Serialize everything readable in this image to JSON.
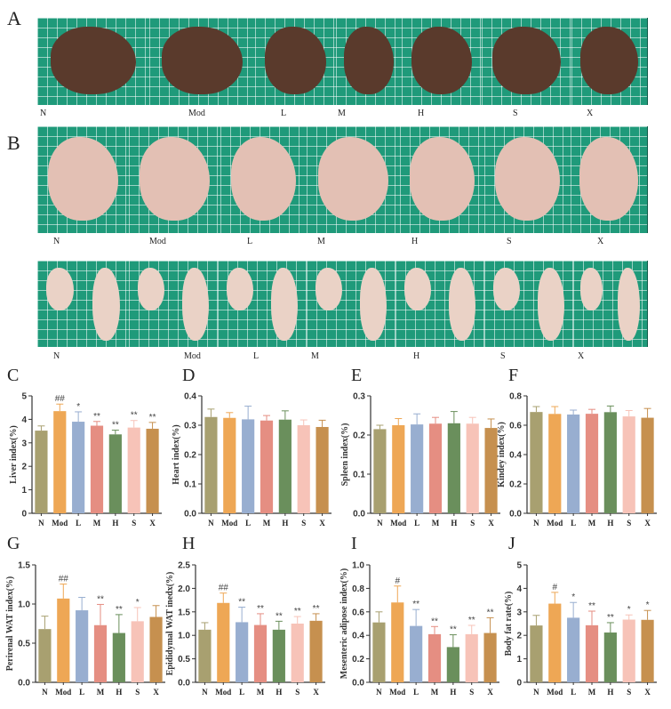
{
  "groups": [
    "N",
    "Mod",
    "L",
    "M",
    "H",
    "S",
    "X"
  ],
  "colors": {
    "N": "#a8a070",
    "Mod": "#eea755",
    "L": "#98aed0",
    "M": "#e58e82",
    "H": "#6a8f5c",
    "S": "#f7c3b8",
    "X": "#c6904f"
  },
  "photo_panels": [
    {
      "letter": "A",
      "subject": "liver",
      "tissue_color": "#5a3a2c"
    },
    {
      "letter": "B",
      "subject": "mesenteric adipose",
      "tissue_color": "#e3c0b4"
    },
    {
      "letter": "",
      "subject": "perirenal / epididymal adipose",
      "tissue_color": "#ead2c6"
    }
  ],
  "chart_data": [
    {
      "letter": "C",
      "type": "bar",
      "ylabel": "Liver index(%)",
      "categories": [
        "N",
        "Mod",
        "L",
        "M",
        "H",
        "S",
        "X"
      ],
      "values": [
        3.52,
        4.35,
        3.9,
        3.73,
        3.36,
        3.65,
        3.6
      ],
      "errors": [
        0.2,
        0.3,
        0.42,
        0.18,
        0.18,
        0.3,
        0.27
      ],
      "annotations": [
        "",
        "##",
        "*",
        "**",
        "**",
        "**",
        "**"
      ],
      "ylim": [
        0,
        5
      ],
      "yticks": [
        "0",
        "1",
        "2",
        "3",
        "4",
        "5"
      ]
    },
    {
      "letter": "D",
      "type": "bar",
      "ylabel": "Heart index(%)",
      "categories": [
        "N",
        "Mod",
        "L",
        "M",
        "H",
        "S",
        "X"
      ],
      "values": [
        0.328,
        0.325,
        0.32,
        0.316,
        0.319,
        0.3,
        0.294
      ],
      "errors": [
        0.027,
        0.018,
        0.045,
        0.017,
        0.03,
        0.018,
        0.023
      ],
      "annotations": [
        "",
        "",
        "",
        "",
        "",
        "",
        ""
      ],
      "ylim": [
        0,
        0.4
      ],
      "yticks": [
        "0.0",
        "0.1",
        "0.2",
        "0.3",
        "0.4"
      ]
    },
    {
      "letter": "E",
      "type": "bar",
      "ylabel": "Spleen index(%)",
      "categories": [
        "N",
        "Mod",
        "L",
        "M",
        "H",
        "S",
        "X"
      ],
      "values": [
        0.215,
        0.225,
        0.227,
        0.229,
        0.23,
        0.229,
        0.218
      ],
      "errors": [
        0.01,
        0.017,
        0.027,
        0.016,
        0.03,
        0.016,
        0.023
      ],
      "annotations": [
        "",
        "",
        "",
        "",
        "",
        "",
        ""
      ],
      "ylim": [
        0,
        0.3
      ],
      "yticks": [
        "0.0",
        "0.1",
        "0.2",
        "0.3"
      ]
    },
    {
      "letter": "F",
      "type": "bar",
      "ylabel": "Kindey index(%)",
      "categories": [
        "N",
        "Mod",
        "L",
        "M",
        "H",
        "S",
        "X"
      ],
      "values": [
        0.69,
        0.677,
        0.673,
        0.678,
        0.689,
        0.66,
        0.651
      ],
      "errors": [
        0.037,
        0.05,
        0.03,
        0.03,
        0.042,
        0.04,
        0.063
      ],
      "annotations": [
        "",
        "",
        "",
        "",
        "",
        "",
        ""
      ],
      "ylim": [
        0,
        0.8
      ],
      "yticks": [
        "0.0",
        "0.2",
        "0.4",
        "0.6",
        "0.8"
      ]
    },
    {
      "letter": "G",
      "type": "bar",
      "ylabel": "Perirenal WAT index(%)",
      "categories": [
        "N",
        "Mod",
        "L",
        "M",
        "H",
        "S",
        "X"
      ],
      "values": [
        0.68,
        1.07,
        0.92,
        0.73,
        0.63,
        0.78,
        0.835
      ],
      "errors": [
        0.165,
        0.185,
        0.165,
        0.265,
        0.235,
        0.175,
        0.145
      ],
      "annotations": [
        "",
        "##",
        "",
        "**",
        "**",
        "*",
        ""
      ],
      "ylim": [
        0,
        1.5
      ],
      "yticks": [
        "0.0",
        "0.5",
        "1.0",
        "1.5"
      ]
    },
    {
      "letter": "H",
      "type": "bar",
      "ylabel": "Epididymal WAT inedx(%)",
      "categories": [
        "N",
        "Mod",
        "L",
        "M",
        "H",
        "S",
        "X"
      ],
      "values": [
        1.12,
        1.69,
        1.28,
        1.22,
        1.12,
        1.25,
        1.31
      ],
      "errors": [
        0.15,
        0.21,
        0.32,
        0.24,
        0.18,
        0.15,
        0.15
      ],
      "annotations": [
        "",
        "##",
        "**",
        "**",
        "**",
        "**",
        "**"
      ],
      "ylim": [
        0,
        2.5
      ],
      "yticks": [
        "0.0",
        "0.5",
        "1.0",
        "1.5",
        "2.0",
        "2.5"
      ]
    },
    {
      "letter": "I",
      "type": "bar",
      "ylabel": "Mesenteric adipose index(%)",
      "categories": [
        "N",
        "Mod",
        "L",
        "M",
        "H",
        "S",
        "X"
      ],
      "values": [
        0.51,
        0.68,
        0.48,
        0.41,
        0.3,
        0.41,
        0.42
      ],
      "errors": [
        0.09,
        0.14,
        0.14,
        0.065,
        0.105,
        0.075,
        0.13
      ],
      "annotations": [
        "",
        "#",
        "**",
        "**",
        "**",
        "**",
        "**"
      ],
      "ylim": [
        0,
        1.0
      ],
      "yticks": [
        "0.0",
        "0.2",
        "0.4",
        "0.6",
        "0.8",
        "1.0"
      ]
    },
    {
      "letter": "J",
      "type": "bar",
      "ylabel": "Body fat rate(%)",
      "categories": [
        "N",
        "Mod",
        "L",
        "M",
        "H",
        "S",
        "X"
      ],
      "values": [
        2.42,
        3.35,
        2.75,
        2.43,
        2.12,
        2.67,
        2.66
      ],
      "errors": [
        0.43,
        0.48,
        0.65,
        0.6,
        0.42,
        0.2,
        0.4
      ],
      "annotations": [
        "",
        "#",
        "*",
        "**",
        "**",
        "*",
        "*"
      ],
      "ylim": [
        0,
        5
      ],
      "yticks": [
        "0",
        "1",
        "2",
        "3",
        "4",
        "5"
      ]
    }
  ]
}
